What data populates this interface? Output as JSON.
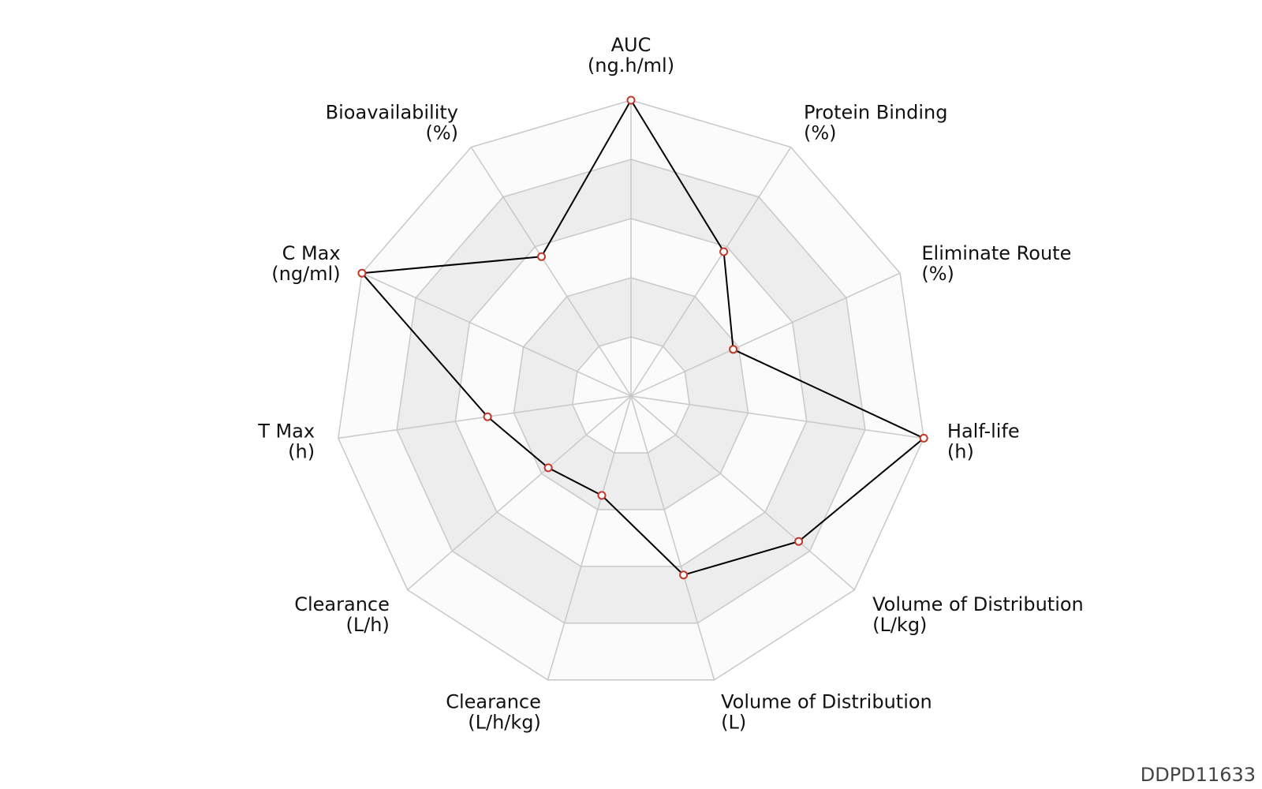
{
  "chart_data": {
    "type": "radar",
    "grid": true,
    "axes": [
      {
        "name": "AUC",
        "unit": "(ng.h/ml)"
      },
      {
        "name": "Protein Binding",
        "unit": "(%)"
      },
      {
        "name": "Eliminate Route",
        "unit": "(%)"
      },
      {
        "name": "Half-life",
        "unit": "(h)"
      },
      {
        "name": "Volume of Distribution",
        "unit": "(L/kg)"
      },
      {
        "name": "Volume of Distribution",
        "unit": "(L)"
      },
      {
        "name": "Clearance",
        "unit": "(L/h/kg)"
      },
      {
        "name": "Clearance",
        "unit": "(L/h)"
      },
      {
        "name": "T Max",
        "unit": "(h)"
      },
      {
        "name": "C Max",
        "unit": "(ng/ml)"
      },
      {
        "name": "Bioavailability",
        "unit": "(%)"
      }
    ],
    "rings": 5,
    "range": [
      0,
      1
    ],
    "series": [
      {
        "values": [
          1.0,
          0.58,
          0.38,
          1.0,
          0.75,
          0.63,
          0.35,
          0.37,
          0.49,
          1.0,
          0.56
        ]
      }
    ],
    "colors": {
      "line": "#000000",
      "marker_stroke": "#c0392b",
      "marker_fill": "#ffffff",
      "grid": "#c8c8c8",
      "band_shaded": "#ededed",
      "band_light": "#fbfbfb"
    }
  },
  "footer": {
    "id": "DDPD11633"
  }
}
